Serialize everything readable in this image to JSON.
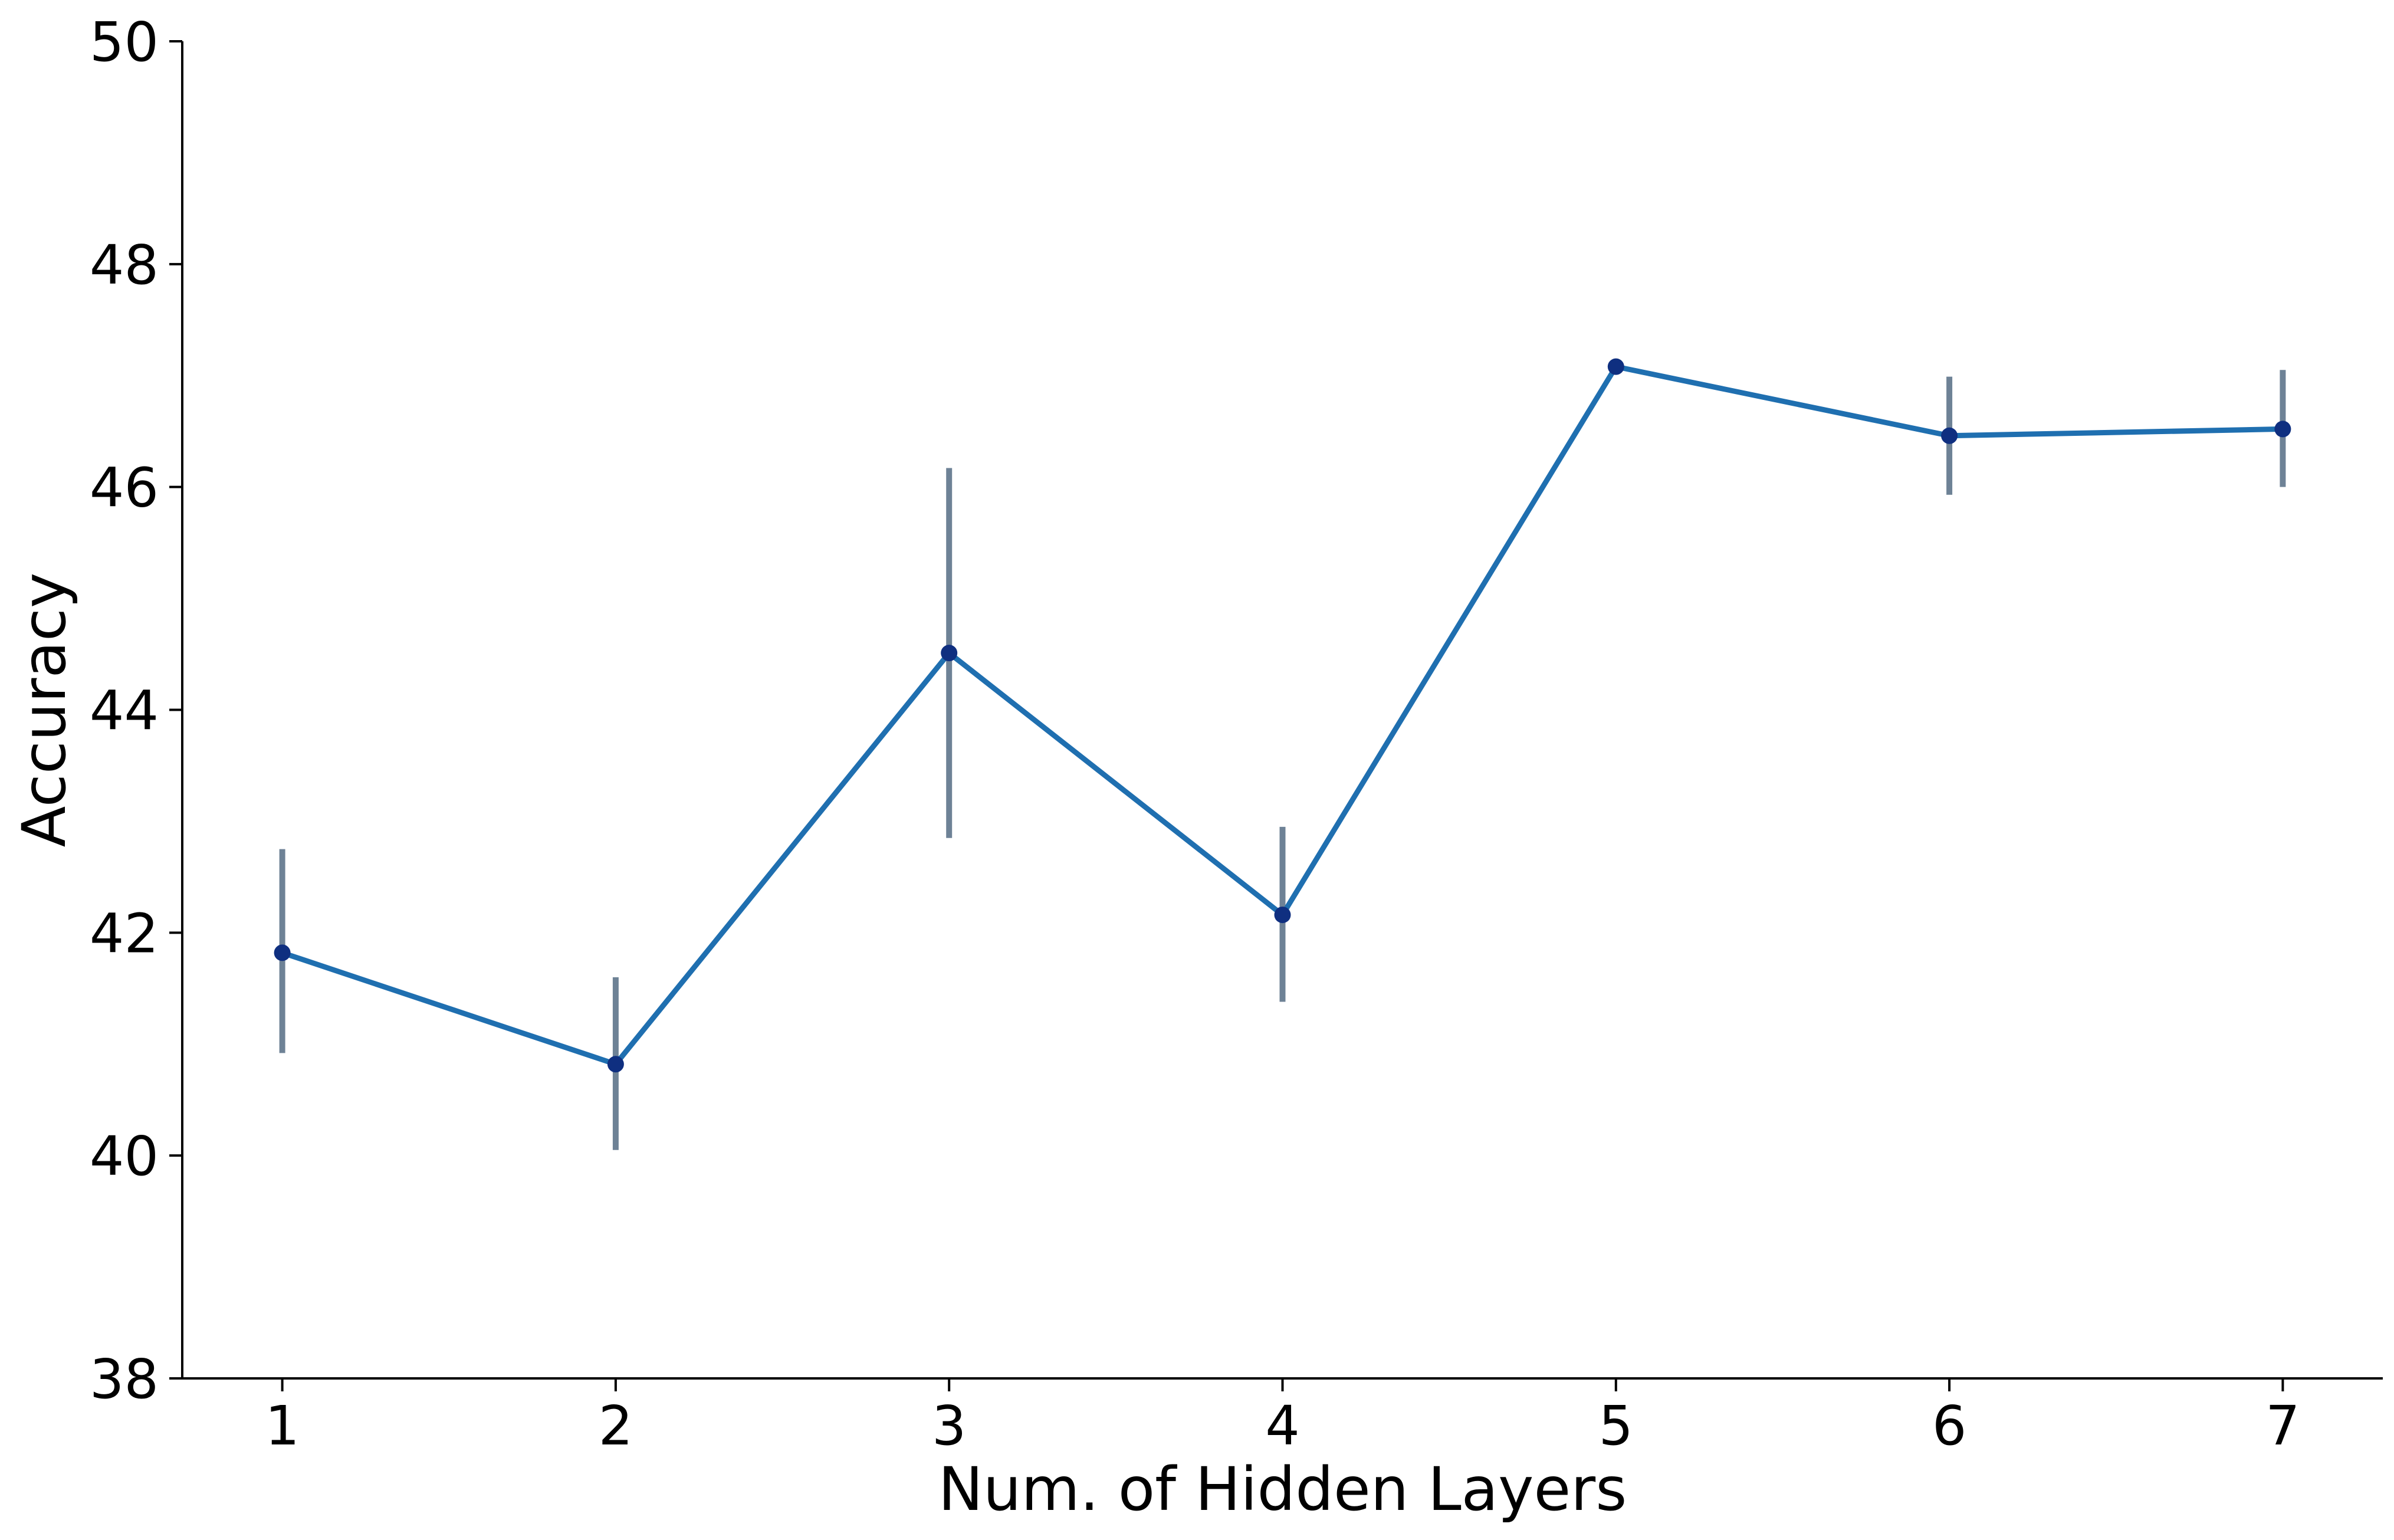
{
  "chart_data": {
    "type": "line",
    "title": "",
    "xlabel": "Num. of Hidden Layers",
    "ylabel": "Accuracy",
    "x": [
      1,
      2,
      3,
      4,
      5,
      6,
      7
    ],
    "xticks": [
      "1",
      "2",
      "3",
      "4",
      "5",
      "6",
      "7"
    ],
    "yticks": [
      "38",
      "40",
      "42",
      "44",
      "46",
      "48",
      "50"
    ],
    "ylim": [
      38,
      50
    ],
    "xlim": [
      0.7,
      7.3
    ],
    "grid": false,
    "legend": "none",
    "series": [
      {
        "values": [
          41.82,
          40.82,
          44.51,
          42.16,
          47.08,
          46.46,
          46.52
        ],
        "error_low": [
          40.92,
          40.05,
          42.85,
          41.38,
          47.02,
          45.93,
          46.0
        ],
        "error_high": [
          42.75,
          41.6,
          46.17,
          42.95,
          47.15,
          46.99,
          47.05
        ],
        "line_color": "#1f6fb0",
        "marker_color": "#0f2f80",
        "errorbar_color": "#6e8296"
      }
    ]
  }
}
